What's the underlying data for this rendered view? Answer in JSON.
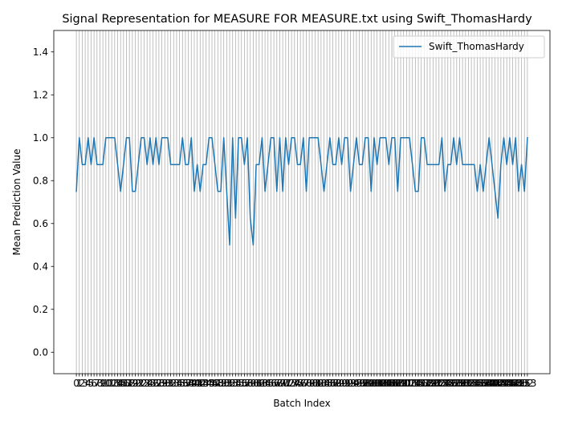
{
  "chart_data": {
    "type": "line",
    "title": "Signal Representation for MEASURE FOR MEASURE.txt using Swift_ThomasHardy",
    "xlabel": "Batch Index",
    "ylabel": "Mean Prediction Value",
    "xlim": [
      0,
      153
    ],
    "ylim": [
      -0.1,
      1.5
    ],
    "yticks": [
      0.0,
      0.2,
      0.4,
      0.6,
      0.8,
      1.0,
      1.2,
      1.4
    ],
    "grid": "x-only",
    "legend_position": "top-right",
    "series": [
      {
        "name": "Swift_ThomasHardy",
        "color": "#1f77b4",
        "values": [
          0.75,
          1.0,
          0.875,
          0.875,
          1.0,
          0.875,
          1.0,
          0.875,
          0.875,
          0.875,
          1.0,
          1.0,
          1.0,
          1.0,
          0.875,
          0.75,
          0.875,
          1.0,
          1.0,
          0.75,
          0.75,
          0.875,
          1.0,
          1.0,
          0.875,
          1.0,
          0.875,
          1.0,
          0.875,
          1.0,
          1.0,
          1.0,
          0.875,
          0.875,
          0.875,
          0.875,
          1.0,
          0.875,
          0.875,
          1.0,
          0.75,
          0.875,
          0.75,
          0.875,
          0.875,
          1.0,
          1.0,
          0.875,
          0.75,
          0.75,
          1.0,
          0.75,
          0.5,
          1.0,
          0.625,
          1.0,
          1.0,
          0.875,
          1.0,
          0.625,
          0.5,
          0.875,
          0.875,
          1.0,
          0.75,
          0.875,
          1.0,
          1.0,
          0.75,
          1.0,
          0.75,
          1.0,
          0.875,
          1.0,
          1.0,
          0.875,
          0.875,
          1.0,
          0.75,
          1.0,
          1.0,
          1.0,
          1.0,
          0.875,
          0.75,
          0.875,
          1.0,
          0.875,
          0.875,
          1.0,
          0.875,
          1.0,
          1.0,
          0.75,
          0.875,
          1.0,
          0.875,
          0.875,
          1.0,
          1.0,
          0.75,
          1.0,
          0.875,
          1.0,
          1.0,
          1.0,
          0.875,
          1.0,
          1.0,
          0.75,
          1.0,
          1.0,
          1.0,
          1.0,
          0.875,
          0.75,
          0.75,
          1.0,
          1.0,
          0.875,
          0.875,
          0.875,
          0.875,
          0.875,
          1.0,
          0.75,
          0.875,
          0.875,
          1.0,
          0.875,
          1.0,
          0.875,
          0.875,
          0.875,
          0.875,
          0.875,
          0.75,
          0.875,
          0.75,
          0.875,
          1.0,
          0.875,
          0.75,
          0.625,
          0.875,
          1.0,
          0.875,
          1.0,
          0.875,
          1.0,
          0.75,
          0.875,
          0.75,
          1.0
        ]
      }
    ]
  }
}
